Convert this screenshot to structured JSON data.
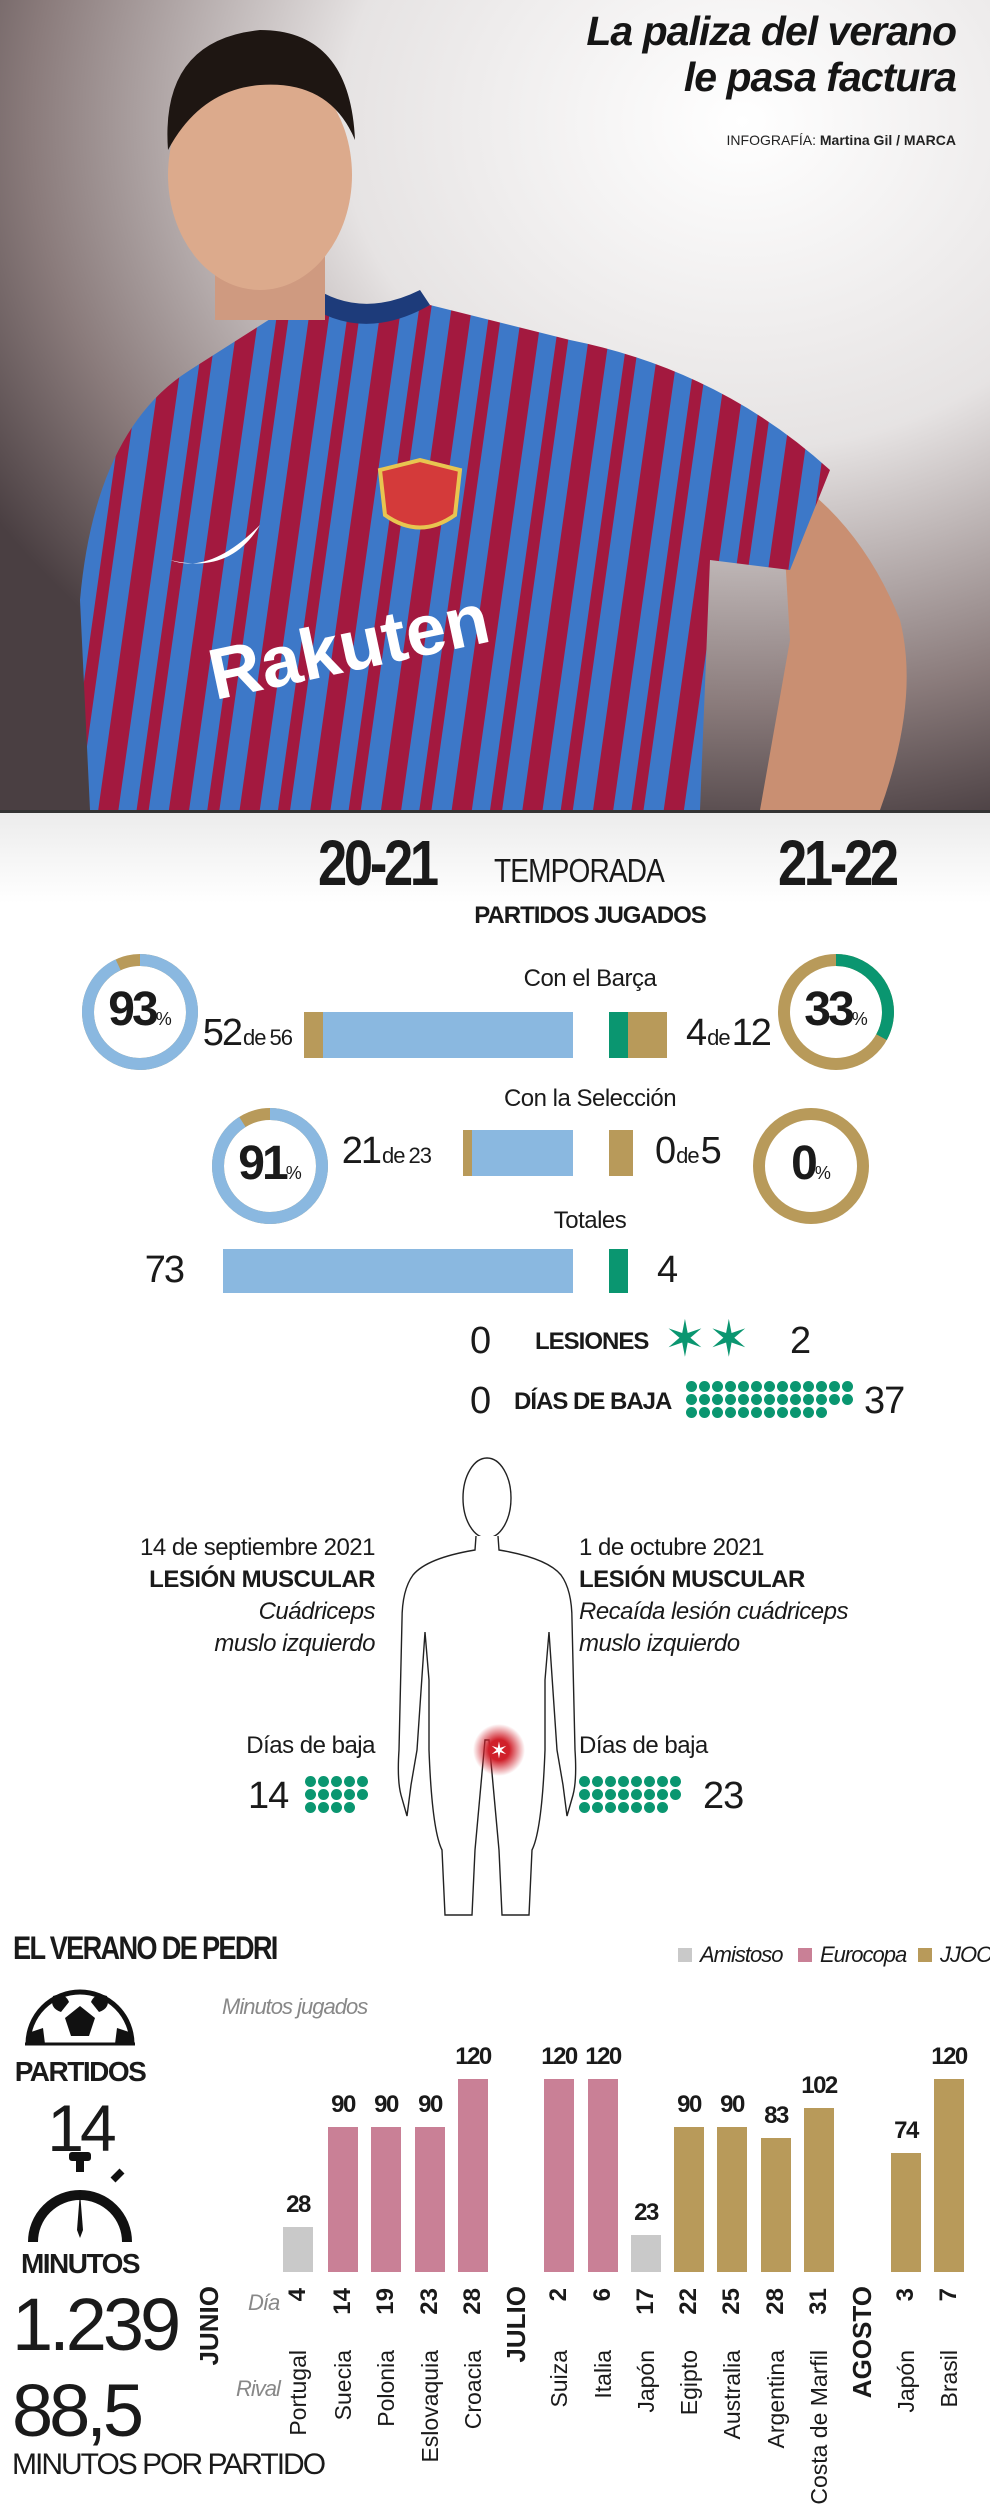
{
  "header": {
    "title_line1": "La paliza del verano",
    "title_line2": "le pasa factura",
    "credit_label": "INFOGRAFÍA:",
    "credit_name": "Martina Gil / MARCA"
  },
  "photo": {
    "sponsor": "Rakuten"
  },
  "colors": {
    "previous": "#8ab8e0",
    "missed": "#b89a5a",
    "current": "#0a9670",
    "amistoso": "#c9c9c9",
    "eurocopa": "#c98096",
    "jjoo": "#b89a5a",
    "injury": "#d0202a"
  },
  "season": {
    "left": "20-21",
    "label": "TEMPORADA",
    "right": "21-22",
    "subtitle": "PARTIDOS JUGADOS"
  },
  "de": "de",
  "pct_sign": "%",
  "stats": {
    "barca": {
      "label": "Con el Barça",
      "left": {
        "pct": 93,
        "played": 52,
        "total": 56
      },
      "right": {
        "pct": 33,
        "played": 4,
        "total": 12
      }
    },
    "seleccion": {
      "label": "Con la Selección",
      "left": {
        "pct": 91,
        "played": 21,
        "total": 23
      },
      "right": {
        "pct": 0,
        "played": 0,
        "total": 5
      }
    },
    "totales": {
      "label": "Totales",
      "left": 73,
      "right": 4
    },
    "lesiones": {
      "label": "LESIONES",
      "left": 0,
      "right": 2
    },
    "dias_baja": {
      "label": "DÍAS DE BAJA",
      "left": 0,
      "right": 37
    }
  },
  "injuries": [
    {
      "date": "14 de septiembre 2021",
      "type": "LESIÓN MUSCULAR",
      "desc1": "Cuádriceps",
      "desc2": "muslo izquierdo",
      "days_label": "Días de baja",
      "days": 14
    },
    {
      "date": "1 de octubre 2021",
      "type": "LESIÓN MUSCULAR",
      "desc1": "Recaída lesión cuádriceps",
      "desc2": "muslo izquierdo",
      "days_label": "Días de baja",
      "days": 23
    }
  ],
  "summer": {
    "title": "EL VERANO DE PEDRI",
    "partidos_label": "PARTIDOS",
    "partidos": "14",
    "minutos_label": "MINUTOS",
    "minutos": "1.239",
    "media": "88,5",
    "media_label": "MINUTOS POR PARTIDO",
    "day_label": "Día",
    "rival_label": "Rival",
    "months": [
      "JUNIO",
      "JULIO",
      "AGOSTO"
    ]
  },
  "chart_data": {
    "type": "bar",
    "ylabel": "Minutos jugados",
    "legend": [
      {
        "name": "Amistoso",
        "color": "#c9c9c9"
      },
      {
        "name": "Eurocopa",
        "color": "#c98096"
      },
      {
        "name": "JJOO",
        "color": "#b89a5a"
      }
    ],
    "matches": [
      {
        "month": "JUNIO",
        "day": "4",
        "rival": "Portugal",
        "competition": "Amistoso",
        "minutes": 28
      },
      {
        "month": "JUNIO",
        "day": "14",
        "rival": "Suecia",
        "competition": "Eurocopa",
        "minutes": 90
      },
      {
        "month": "JUNIO",
        "day": "19",
        "rival": "Polonia",
        "competition": "Eurocopa",
        "minutes": 90
      },
      {
        "month": "JUNIO",
        "day": "23",
        "rival": "Eslovaquia",
        "competition": "Eurocopa",
        "minutes": 90
      },
      {
        "month": "JUNIO",
        "day": "28",
        "rival": "Croacia",
        "competition": "Eurocopa",
        "minutes": 120
      },
      {
        "month": "JULIO",
        "day": "2",
        "rival": "Suiza",
        "competition": "Eurocopa",
        "minutes": 120
      },
      {
        "month": "JULIO",
        "day": "6",
        "rival": "Italia",
        "competition": "Eurocopa",
        "minutes": 120
      },
      {
        "month": "JULIO",
        "day": "17",
        "rival": "Japón",
        "competition": "Amistoso",
        "minutes": 23
      },
      {
        "month": "JULIO",
        "day": "22",
        "rival": "Egipto",
        "competition": "JJOO",
        "minutes": 90
      },
      {
        "month": "JULIO",
        "day": "25",
        "rival": "Australia",
        "competition": "JJOO",
        "minutes": 90
      },
      {
        "month": "JULIO",
        "day": "28",
        "rival": "Argentina",
        "competition": "JJOO",
        "minutes": 83
      },
      {
        "month": "JULIO",
        "day": "31",
        "rival": "Costa de Marfil",
        "competition": "JJOO",
        "minutes": 102
      },
      {
        "month": "AGOSTO",
        "day": "3",
        "rival": "Japón",
        "competition": "JJOO",
        "minutes": 74
      },
      {
        "month": "AGOSTO",
        "day": "7",
        "rival": "Brasil",
        "competition": "JJOO",
        "minutes": 120
      }
    ]
  }
}
